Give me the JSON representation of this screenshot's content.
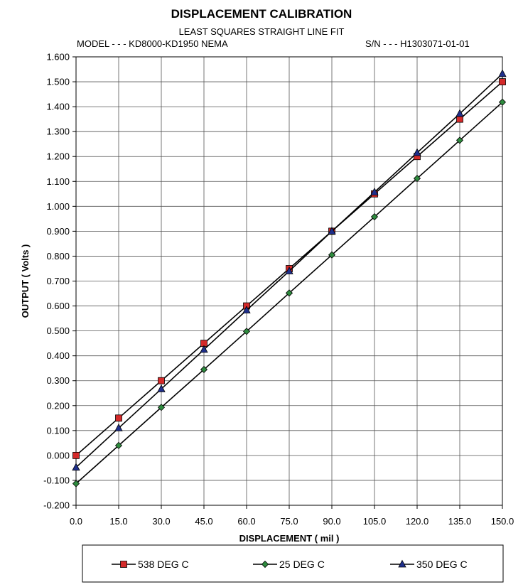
{
  "header": {
    "title": "DISPLACEMENT CALIBRATION",
    "subtitle": "LEAST SQUARES STRAIGHT LINE FIT",
    "model": "MODEL - - - KD8000-KD1950 NEMA",
    "serial": "S/N - - - H1303071-01-01"
  },
  "chart_data": {
    "type": "line",
    "title": "DISPLACEMENT CALIBRATION",
    "subtitle": "LEAST SQUARES STRAIGHT LINE FIT",
    "xlabel": "DISPLACEMENT ( mil )",
    "ylabel": "OUTPUT ( Volts )",
    "xlim": [
      0,
      150
    ],
    "ylim": [
      -0.2,
      1.6
    ],
    "x_ticks": [
      "0.0",
      "15.0",
      "30.0",
      "45.0",
      "60.0",
      "75.0",
      "90.0",
      "105.0",
      "120.0",
      "135.0",
      "150.0"
    ],
    "y_ticks": [
      "-0.200",
      "-0.100",
      "0.000",
      "0.100",
      "0.200",
      "0.300",
      "0.400",
      "0.500",
      "0.600",
      "0.700",
      "0.800",
      "0.900",
      "1.000",
      "1.100",
      "1.200",
      "1.300",
      "1.400",
      "1.500",
      "1.600"
    ],
    "grid": true,
    "legend_position": "bottom",
    "x": [
      0,
      15,
      30,
      45,
      60,
      75,
      90,
      105,
      120,
      135,
      150
    ],
    "series": [
      {
        "name": "538  DEG C",
        "marker": "square",
        "color": "#d42a2a",
        "values": [
          0.0,
          0.15,
          0.3,
          0.45,
          0.6,
          0.75,
          0.9,
          1.05,
          1.2,
          1.35,
          1.5
        ]
      },
      {
        "name": "25  DEG C",
        "marker": "diamond",
        "color": "#2e8b3e",
        "values": [
          -0.113,
          0.04,
          0.193,
          0.345,
          0.498,
          0.652,
          0.805,
          0.958,
          1.112,
          1.265,
          1.418
        ]
      },
      {
        "name": "350  DEG C",
        "marker": "triangle",
        "color": "#1f2f8c",
        "values": [
          -0.048,
          0.11,
          0.267,
          0.425,
          0.583,
          0.74,
          0.9,
          1.057,
          1.215,
          1.372,
          1.532
        ]
      }
    ]
  }
}
